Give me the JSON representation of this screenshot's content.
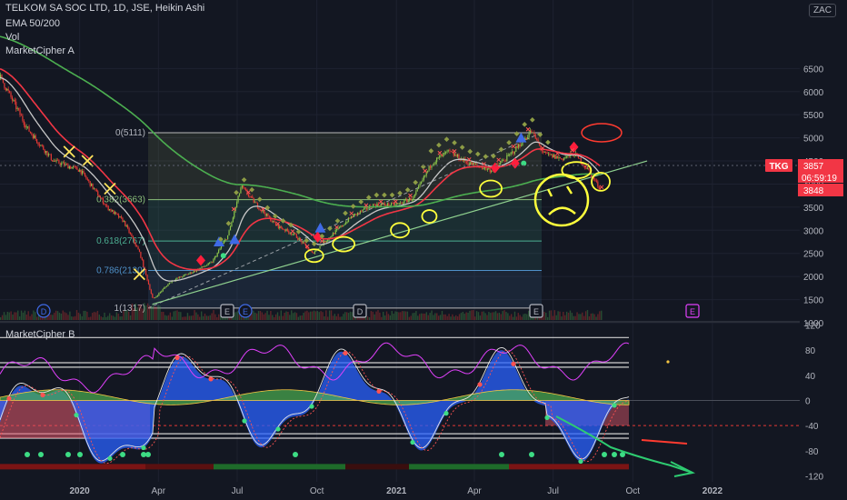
{
  "header": {
    "symbol_line": "TELKOM SA SOC LTD, 1D, JSE, Heikin Ashi",
    "indicators": [
      "EMA 50/200",
      "Vol",
      "MarketCipher A"
    ],
    "lower_pane_title": "MarketCipher B",
    "currency": "ZAC"
  },
  "price_badge": {
    "ticker": "TKG",
    "price": "3857",
    "countdown": "06:59:19",
    "ema_value": "3848"
  },
  "colors": {
    "background": "#131722",
    "grid": "#1e2230",
    "text": "#b2b5be",
    "ema50": "#f23645",
    "ema200": "#4caf50",
    "white_ma": "#c8c8c8",
    "up_candle": "#8bc34a",
    "down_candle": "#e53935",
    "wave_blue": "#2962ff",
    "wave_red": "#e65a6e",
    "money_flow_green": "#4caf50",
    "money_flow_yellow": "#f5c542",
    "rsi_magenta": "#e040fb",
    "annotation_yellow": "#ffff3c",
    "annotation_green": "#2ecc71",
    "annotation_red": "#ff3b30",
    "badge_red": "#f23645"
  },
  "chart_data": {
    "type": "candlestick",
    "time_axis": [
      "2020",
      "Apr",
      "Jul",
      "Oct",
      "2021",
      "Apr",
      "Jul",
      "Oct",
      "2022"
    ],
    "price_axis": [
      6500,
      6000,
      5500,
      5000,
      4500,
      4000,
      3500,
      3000,
      2500,
      2000,
      1500,
      1000
    ],
    "price_range": [
      1000,
      6700
    ],
    "oscillator_axis": [
      120,
      80,
      40,
      0,
      -40,
      -80,
      -120
    ],
    "oscillator_range": [
      -128,
      128
    ],
    "fib_levels": [
      {
        "label": "0(5111)",
        "price": 5111
      },
      {
        "label": "0.382(3663)",
        "price": 3663
      },
      {
        "label": "0.618(2767)",
        "price": 2767
      },
      {
        "label": "0.786(2130)",
        "price": 2130
      },
      {
        "label": "1(1317)",
        "price": 1317
      }
    ],
    "last_price": 3857,
    "event_markers": [
      "D",
      "E",
      "E",
      "D",
      "E",
      "E",
      "E"
    ],
    "price_series": [
      {
        "date": "2019-10-01",
        "value": 6300
      },
      {
        "date": "2019-11-01",
        "value": 5200
      },
      {
        "date": "2019-12-01",
        "value": 4500
      },
      {
        "date": "2020-01-01",
        "value": 4300
      },
      {
        "date": "2020-02-01",
        "value": 3500
      },
      {
        "date": "2020-02-20",
        "value": 3200
      },
      {
        "date": "2020-03-10",
        "value": 2500
      },
      {
        "date": "2020-03-25",
        "value": 1500
      },
      {
        "date": "2020-04-15",
        "value": 1900
      },
      {
        "date": "2020-05-10",
        "value": 2100
      },
      {
        "date": "2020-06-01",
        "value": 2300
      },
      {
        "date": "2020-06-20",
        "value": 2900
      },
      {
        "date": "2020-07-05",
        "value": 3950
      },
      {
        "date": "2020-07-25",
        "value": 3500
      },
      {
        "date": "2020-08-15",
        "value": 3100
      },
      {
        "date": "2020-09-05",
        "value": 2900
      },
      {
        "date": "2020-09-25",
        "value": 2500
      },
      {
        "date": "2020-10-15",
        "value": 2850
      },
      {
        "date": "2020-11-10",
        "value": 3300
      },
      {
        "date": "2020-12-05",
        "value": 3550
      },
      {
        "date": "2020-12-31",
        "value": 3550
      },
      {
        "date": "2021-01-20",
        "value": 3700
      },
      {
        "date": "2021-02-10",
        "value": 4450
      },
      {
        "date": "2021-03-01",
        "value": 4700
      },
      {
        "date": "2021-03-25",
        "value": 4450
      },
      {
        "date": "2021-04-20",
        "value": 4300
      },
      {
        "date": "2021-05-10",
        "value": 4600
      },
      {
        "date": "2021-05-25",
        "value": 4900
      },
      {
        "date": "2021-06-05",
        "value": 5150
      },
      {
        "date": "2021-06-20",
        "value": 4650
      },
      {
        "date": "2021-07-10",
        "value": 4550
      },
      {
        "date": "2021-07-25",
        "value": 4650
      },
      {
        "date": "2021-08-10",
        "value": 4300
      },
      {
        "date": "2021-08-25",
        "value": 3857
      }
    ],
    "ema_series": [
      {
        "name": "EMA 50",
        "color": "#f23645"
      },
      {
        "name": "EMA 200",
        "color": "#4caf50"
      }
    ]
  }
}
